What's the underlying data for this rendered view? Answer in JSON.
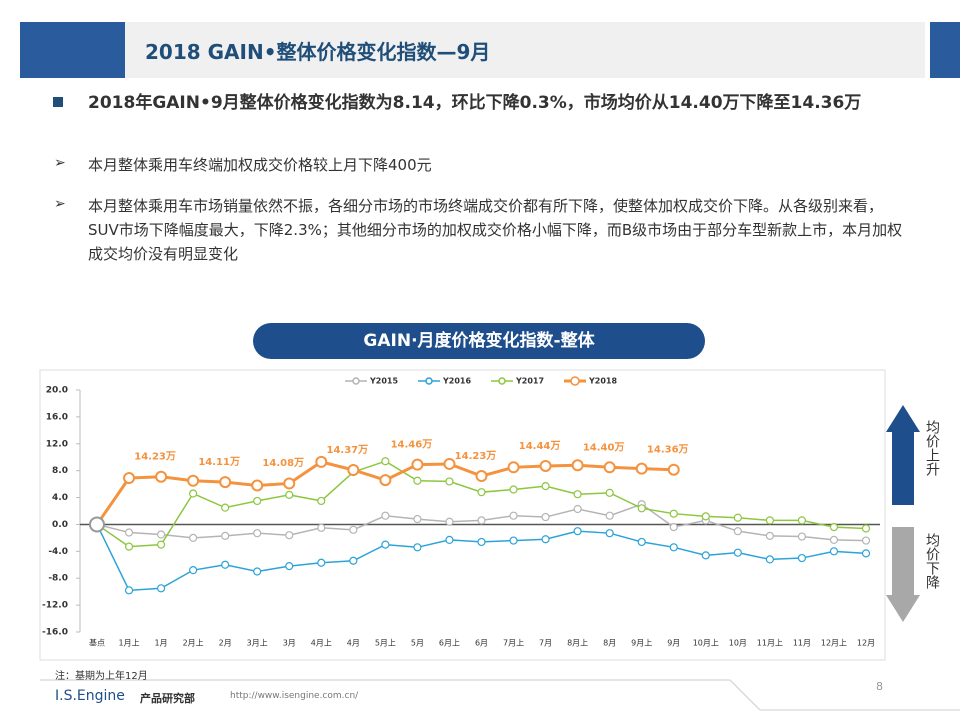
{
  "header": {
    "title": "2018 GAIN•整体价格变化指数—9月"
  },
  "bullets": {
    "main": "2018年GAIN•9月整体价格变化指数为8.14，环比下降0.3%，市场均价从14.40万下降至14.36万",
    "sub": [
      "本月整体乘用车终端加权成交价格较上月下降400元",
      "本月整体乘用车市场销量依然不振，各细分市场的市场终端成交价都有所下降，使整体加权成交价下降。从各级别来看，SUV市场下降幅度最大，下降2.3%；其他细分市场的加权成交价格小幅下降，而B级市场由于部分车型新款上市，本月加权成交均价没有明显变化"
    ]
  },
  "chart_data": {
    "type": "line",
    "title": "GAIN·月度价格变化指数-整体",
    "categories": [
      "基点",
      "1月上",
      "1月",
      "2月上",
      "2月",
      "3月上",
      "3月",
      "4月上",
      "4月",
      "5月上",
      "5月",
      "6月上",
      "6月",
      "7月上",
      "7月",
      "8月上",
      "8月",
      "9月上",
      "9月",
      "10月上",
      "10月",
      "11月上",
      "11月",
      "12月上",
      "12月"
    ],
    "series": [
      {
        "name": "Y2015",
        "color": "#b4b4b4",
        "values": [
          0,
          -1.2,
          -1.5,
          -2,
          -1.7,
          -1.3,
          -1.6,
          -0.5,
          -0.8,
          1.3,
          0.8,
          0.4,
          0.6,
          1.3,
          1.1,
          2.3,
          1.3,
          3.0,
          -0.4,
          0.6,
          -1,
          -1.7,
          -1.8,
          -2.3,
          -2.4
        ]
      },
      {
        "name": "Y2016",
        "color": "#2ba3d8",
        "values": [
          0,
          -9.8,
          -9.5,
          -6.8,
          -6,
          -7,
          -6.2,
          -5.7,
          -5.4,
          -3,
          -3.4,
          -2.3,
          -2.6,
          -2.4,
          -2.2,
          -1,
          -1.3,
          -2.6,
          -3.4,
          -4.6,
          -4.2,
          -5.2,
          -5,
          -4,
          -4.3
        ]
      },
      {
        "name": "Y2017",
        "color": "#8dc63f",
        "values": [
          0,
          -3.3,
          -3,
          4.6,
          2.5,
          3.5,
          4.4,
          3.5,
          7.8,
          9.4,
          6.5,
          6.4,
          4.8,
          5.2,
          5.7,
          4.5,
          4.7,
          2.4,
          1.6,
          1.2,
          1,
          0.6,
          0.6,
          -0.4,
          -0.6
        ]
      },
      {
        "name": "Y2018",
        "color": "#f5923e",
        "values": [
          0,
          6.9,
          7.1,
          6.5,
          6.3,
          5.8,
          6.1,
          9.3,
          8.1,
          6.6,
          8.9,
          9.0,
          7.2,
          8.5,
          8.7,
          8.8,
          8.5,
          8.3,
          8.14,
          null,
          null,
          null,
          null,
          null,
          null
        ]
      }
    ],
    "annotations": [
      {
        "text": "14.23万",
        "category": "1月"
      },
      {
        "text": "14.11万",
        "category": "2月"
      },
      {
        "text": "14.08万",
        "category": "3月"
      },
      {
        "text": "14.37万",
        "category": "4月"
      },
      {
        "text": "14.46万",
        "category": "5月"
      },
      {
        "text": "14.23万",
        "category": "6月"
      },
      {
        "text": "14.44万",
        "category": "7月"
      },
      {
        "text": "14.40万",
        "category": "8月"
      },
      {
        "text": "14.36万",
        "category": "9月"
      }
    ],
    "ylim": [
      -16,
      20
    ],
    "yticks": [
      {
        "value": 20,
        "label": "20.0"
      },
      {
        "value": 16,
        "label": "16.0"
      },
      {
        "value": 12,
        "label": "12.0"
      },
      {
        "value": 8,
        "label": "8.0"
      },
      {
        "value": 4,
        "label": "4.0"
      },
      {
        "value": 0,
        "label": "0.0"
      },
      {
        "value": -4,
        "label": "-4.0"
      },
      {
        "value": -8,
        "label": "-8.0"
      },
      {
        "value": -12,
        "label": "-12.0"
      },
      {
        "value": -16,
        "label": "-16.0"
      }
    ],
    "legend": "top",
    "up_label": "均价上升",
    "down_label": "均价下降"
  },
  "footer": {
    "note": "注：基期为上年12月",
    "company": "I.S.Engine",
    "dept": "产品研究部",
    "url": "http://www.isengine.com.cn/",
    "page": "8"
  }
}
